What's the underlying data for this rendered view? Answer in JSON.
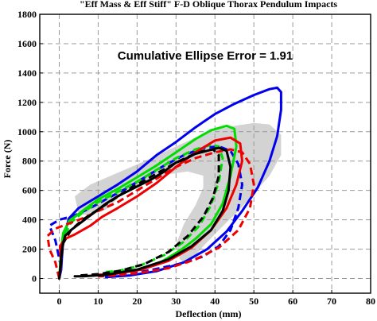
{
  "chart_data": {
    "type": "line",
    "title": "\"Eff Mass & Eff Stiff\" F-D Oblique Thorax Pendulum Impacts",
    "annotation": "Cumulative Ellipse Error = 1.91",
    "xlabel": "Deflection (mm)",
    "ylabel": "Force (N)",
    "xlim": [
      -5,
      80
    ],
    "ylim": [
      -100,
      1800
    ],
    "xticks": [
      "0",
      "10",
      "20",
      "30",
      "40",
      "50",
      "60",
      "70",
      "80"
    ],
    "xtick_values": [
      0,
      10,
      20,
      30,
      40,
      50,
      60,
      70,
      80
    ],
    "yticks": [
      "0",
      "200",
      "400",
      "600",
      "800",
      "1000",
      "1200",
      "1400",
      "1600",
      "1800"
    ],
    "ytick_values": [
      0,
      200,
      400,
      600,
      800,
      1000,
      1200,
      1400,
      1600,
      1800
    ],
    "grid": true,
    "corridor": {
      "color": "#d3d3d3",
      "points": [
        [
          4,
          560
        ],
        [
          8,
          640
        ],
        [
          15,
          720
        ],
        [
          22,
          800
        ],
        [
          30,
          900
        ],
        [
          35,
          960
        ],
        [
          40,
          1010
        ],
        [
          45,
          1040
        ],
        [
          50,
          1060
        ],
        [
          54,
          1050
        ],
        [
          57,
          980
        ],
        [
          57,
          840
        ],
        [
          54,
          700
        ],
        [
          50,
          580
        ],
        [
          46,
          460
        ],
        [
          41,
          330
        ],
        [
          37,
          220
        ],
        [
          34,
          130
        ],
        [
          33,
          95
        ],
        [
          31,
          130
        ],
        [
          30,
          230
        ],
        [
          32,
          370
        ],
        [
          35,
          500
        ],
        [
          37,
          620
        ],
        [
          37,
          700
        ],
        [
          33,
          730
        ],
        [
          28,
          710
        ],
        [
          22,
          660
        ],
        [
          16,
          570
        ],
        [
          12,
          470
        ],
        [
          8,
          430
        ],
        [
          5,
          440
        ]
      ]
    },
    "series": [
      {
        "color": "#0000ee",
        "style": "solid",
        "points": [
          [
            0,
            0
          ],
          [
            0.5,
            60
          ],
          [
            0.8,
            190
          ],
          [
            1.2,
            290
          ],
          [
            2.5,
            410
          ],
          [
            5,
            480
          ],
          [
            10,
            560
          ],
          [
            15,
            640
          ],
          [
            20,
            730
          ],
          [
            25,
            840
          ],
          [
            30,
            930
          ],
          [
            35,
            1030
          ],
          [
            40,
            1120
          ],
          [
            45,
            1190
          ],
          [
            50,
            1250
          ],
          [
            54,
            1290
          ],
          [
            56,
            1300
          ],
          [
            57,
            1270
          ],
          [
            57,
            1150
          ],
          [
            56,
            970
          ],
          [
            54,
            800
          ],
          [
            51,
            620
          ],
          [
            47,
            460
          ],
          [
            43,
            320
          ],
          [
            38,
            200
          ],
          [
            32,
            110
          ],
          [
            25,
            50
          ],
          [
            18,
            20
          ],
          [
            12,
            10
          ]
        ]
      },
      {
        "color": "#0000ee",
        "style": "dashed",
        "points": [
          [
            0,
            0
          ],
          [
            0.3,
            100
          ],
          [
            -1,
            260
          ],
          [
            -2.5,
            360
          ],
          [
            0,
            400
          ],
          [
            4,
            430
          ],
          [
            8,
            480
          ],
          [
            12,
            540
          ],
          [
            17,
            610
          ],
          [
            22,
            690
          ],
          [
            27,
            770
          ],
          [
            32,
            840
          ],
          [
            37,
            890
          ],
          [
            41,
            900
          ],
          [
            44,
            870
          ],
          [
            46,
            780
          ],
          [
            47,
            640
          ],
          [
            46,
            480
          ],
          [
            44,
            330
          ],
          [
            41,
            220
          ],
          [
            37,
            150
          ],
          [
            31,
            100
          ],
          [
            24,
            60
          ],
          [
            18,
            30
          ],
          [
            12,
            15
          ]
        ]
      },
      {
        "color": "#00dd00",
        "style": "solid",
        "points": [
          [
            0,
            0
          ],
          [
            0.3,
            110
          ],
          [
            0.6,
            220
          ],
          [
            1,
            310
          ],
          [
            2.5,
            390
          ],
          [
            6,
            460
          ],
          [
            10,
            540
          ],
          [
            15,
            610
          ],
          [
            20,
            690
          ],
          [
            25,
            770
          ],
          [
            30,
            860
          ],
          [
            35,
            950
          ],
          [
            39,
            1010
          ],
          [
            43,
            1040
          ],
          [
            45,
            1020
          ],
          [
            45.5,
            900
          ],
          [
            44,
            700
          ],
          [
            42,
            510
          ],
          [
            39,
            370
          ],
          [
            35,
            270
          ],
          [
            31,
            190
          ],
          [
            26,
            110
          ],
          [
            20,
            60
          ],
          [
            12,
            40
          ]
        ]
      },
      {
        "color": "#00dd00",
        "style": "dashed",
        "points": [
          [
            0,
            0
          ],
          [
            0.4,
            140
          ],
          [
            1.2,
            280
          ],
          [
            3,
            380
          ],
          [
            6,
            450
          ],
          [
            10,
            520
          ],
          [
            15,
            590
          ],
          [
            20,
            660
          ],
          [
            25,
            740
          ],
          [
            30,
            820
          ],
          [
            35,
            880
          ],
          [
            39,
            910
          ],
          [
            41,
            900
          ],
          [
            42,
            820
          ],
          [
            41,
            660
          ],
          [
            39,
            500
          ],
          [
            36,
            360
          ],
          [
            32,
            250
          ],
          [
            27,
            160
          ],
          [
            21,
            90
          ],
          [
            15,
            50
          ],
          [
            12,
            45
          ]
        ]
      },
      {
        "color": "#ee0000",
        "style": "solid",
        "points": [
          [
            0,
            0
          ],
          [
            0.5,
            110
          ],
          [
            0.2,
            220
          ],
          [
            1.5,
            270
          ],
          [
            4,
            300
          ],
          [
            8,
            360
          ],
          [
            11,
            420
          ],
          [
            15,
            480
          ],
          [
            20,
            560
          ],
          [
            25,
            650
          ],
          [
            30,
            760
          ],
          [
            35,
            860
          ],
          [
            40,
            940
          ],
          [
            44,
            960
          ],
          [
            46.5,
            920
          ],
          [
            47,
            800
          ],
          [
            45.5,
            640
          ],
          [
            43,
            480
          ],
          [
            39,
            330
          ],
          [
            34,
            210
          ],
          [
            28,
            120
          ],
          [
            21,
            60
          ],
          [
            14,
            30
          ],
          [
            10,
            25
          ]
        ]
      },
      {
        "color": "#ee0000",
        "style": "dashed",
        "points": [
          [
            0,
            0
          ],
          [
            -1,
            110
          ],
          [
            -2.5,
            200
          ],
          [
            -3,
            290
          ],
          [
            -1,
            340
          ],
          [
            2,
            370
          ],
          [
            6,
            410
          ],
          [
            10,
            460
          ],
          [
            15,
            520
          ],
          [
            20,
            600
          ],
          [
            25,
            680
          ],
          [
            30,
            760
          ],
          [
            35,
            820
          ],
          [
            40,
            860
          ],
          [
            44,
            880
          ],
          [
            47,
            860
          ],
          [
            49,
            780
          ],
          [
            50,
            640
          ],
          [
            49,
            480
          ],
          [
            46,
            330
          ],
          [
            41,
            210
          ],
          [
            35,
            130
          ],
          [
            28,
            70
          ],
          [
            21,
            40
          ],
          [
            14,
            20
          ],
          [
            10,
            15
          ]
        ]
      },
      {
        "color": "#000000",
        "style": "solid",
        "points": [
          [
            0,
            0
          ],
          [
            0.4,
            110
          ],
          [
            0.8,
            220
          ],
          [
            1.5,
            290
          ],
          [
            3,
            330
          ],
          [
            6,
            390
          ],
          [
            9,
            450
          ],
          [
            12,
            510
          ],
          [
            15,
            560
          ],
          [
            18,
            600
          ],
          [
            21,
            640
          ],
          [
            24,
            680
          ],
          [
            27,
            730
          ],
          [
            30,
            790
          ],
          [
            32,
            810
          ],
          [
            35,
            850
          ],
          [
            38,
            870
          ],
          [
            41,
            890
          ],
          [
            43,
            870
          ],
          [
            44,
            760
          ],
          [
            43.5,
            600
          ],
          [
            42,
            460
          ],
          [
            39,
            330
          ],
          [
            34,
            220
          ],
          [
            28,
            130
          ],
          [
            20,
            60
          ],
          [
            12,
            25
          ],
          [
            6,
            15
          ],
          [
            4,
            15
          ]
        ]
      },
      {
        "color": "#000000",
        "style": "dashed",
        "points": [
          [
            0,
            0
          ],
          [
            0.5,
            120
          ],
          [
            1,
            240
          ],
          [
            3,
            330
          ],
          [
            6,
            400
          ],
          [
            10,
            470
          ],
          [
            14,
            540
          ],
          [
            18,
            610
          ],
          [
            22,
            670
          ],
          [
            26,
            730
          ],
          [
            30,
            790
          ],
          [
            34,
            840
          ],
          [
            37,
            870
          ],
          [
            39.5,
            880
          ],
          [
            41,
            840
          ],
          [
            41,
            700
          ],
          [
            39.5,
            550
          ],
          [
            37,
            420
          ],
          [
            33,
            290
          ],
          [
            28,
            180
          ],
          [
            22,
            100
          ],
          [
            16,
            55
          ],
          [
            10,
            30
          ],
          [
            5,
            20
          ]
        ]
      }
    ]
  }
}
